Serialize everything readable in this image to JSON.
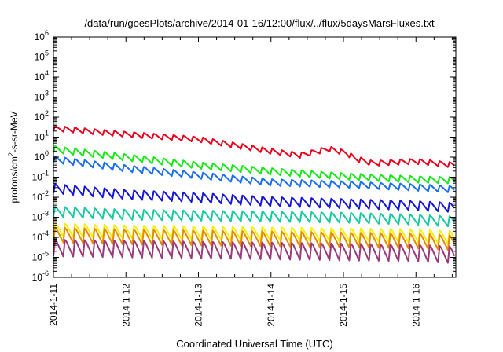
{
  "chart_data": {
    "type": "line",
    "title": "/data/run/goesPlots/archive/2014-01-16/12:00/flux/../flux/5daysMarsFluxes.txt",
    "xlabel": "Coordinated Universal Time (UTC)",
    "ylabel": {
      "main": "protons/cm",
      "sup": "2",
      "rest": "-s-sr-MeV"
    },
    "yscale": "log",
    "ylim": [
      1e-06,
      1000000.0
    ],
    "yticks": [
      {
        "base": "10",
        "exp": "-6",
        "value": -6
      },
      {
        "base": "10",
        "exp": "-5",
        "value": -5
      },
      {
        "base": "10",
        "exp": "-4",
        "value": -4
      },
      {
        "base": "10",
        "exp": "-3",
        "value": -3
      },
      {
        "base": "10",
        "exp": "-2",
        "value": -2
      },
      {
        "base": "10",
        "exp": "-1",
        "value": -1
      },
      {
        "base": "10",
        "exp": "0",
        "value": 0
      },
      {
        "base": "10",
        "exp": "1",
        "value": 1
      },
      {
        "base": "10",
        "exp": "2",
        "value": 2
      },
      {
        "base": "10",
        "exp": "3",
        "value": 3
      },
      {
        "base": "10",
        "exp": "4",
        "value": 4
      },
      {
        "base": "10",
        "exp": "5",
        "value": 5
      },
      {
        "base": "10",
        "exp": "6",
        "value": 6
      }
    ],
    "xlim": [
      0,
      5.55
    ],
    "xticks": [
      {
        "label": "2014-1-11",
        "day": 0
      },
      {
        "label": "2014-1-12",
        "day": 1
      },
      {
        "label": "2014-1-13",
        "day": 2
      },
      {
        "label": "2014-1-14",
        "day": 3
      },
      {
        "label": "2014-1-15",
        "day": 4
      },
      {
        "label": "2014-1-16",
        "day": 5
      }
    ],
    "grid": false,
    "series": [
      {
        "color": "#e8001c",
        "period": 0.136,
        "amp": 0.28,
        "trend": [
          [
            0,
            1.45
          ],
          [
            1,
            1.15
          ],
          [
            2,
            0.9
          ],
          [
            3,
            0.3
          ],
          [
            3.4,
            0.1
          ],
          [
            3.8,
            0.42
          ],
          [
            4.05,
            0.2
          ],
          [
            4.15,
            -0.05
          ],
          [
            4.4,
            -0.3
          ],
          [
            5,
            -0.2
          ],
          [
            5.55,
            -0.4
          ]
        ]
      },
      {
        "color": "#17e817",
        "period": 0.136,
        "amp": 0.35,
        "trend": [
          [
            0,
            0.4
          ],
          [
            1,
            0.0
          ],
          [
            2,
            -0.4
          ],
          [
            3,
            -0.7
          ],
          [
            4,
            -0.95
          ],
          [
            5,
            -1.1
          ],
          [
            5.55,
            -1.15
          ]
        ]
      },
      {
        "color": "#1a6ef0",
        "period": 0.136,
        "amp": 0.35,
        "trend": [
          [
            0,
            -0.1
          ],
          [
            1,
            -0.55
          ],
          [
            2,
            -0.9
          ],
          [
            3,
            -1.25
          ],
          [
            4,
            -1.35
          ],
          [
            5,
            -1.5
          ],
          [
            5.55,
            -1.6
          ]
        ]
      },
      {
        "color": "#1616d6",
        "period": 0.136,
        "amp": 0.5,
        "trend": [
          [
            0,
            -1.55
          ],
          [
            1,
            -1.85
          ],
          [
            2,
            -2.0
          ],
          [
            3,
            -2.2
          ],
          [
            4,
            -2.3
          ],
          [
            5,
            -2.4
          ],
          [
            5.55,
            -2.5
          ]
        ]
      },
      {
        "color": "#18c8a0",
        "period": 0.136,
        "amp": 0.55,
        "trend": [
          [
            0,
            -2.7
          ],
          [
            1,
            -2.85
          ],
          [
            2,
            -2.9
          ],
          [
            3,
            -2.95
          ],
          [
            4,
            -3.0
          ],
          [
            5,
            -3.1
          ],
          [
            5.55,
            -3.2
          ]
        ]
      },
      {
        "color": "#f2f200",
        "period": 0.136,
        "amp": 0.7,
        "trend": [
          [
            0,
            -3.6
          ],
          [
            1,
            -3.7
          ],
          [
            2,
            -3.75
          ],
          [
            3,
            -3.8
          ],
          [
            4,
            -3.85
          ],
          [
            5,
            -3.9
          ],
          [
            5.55,
            -4.0
          ]
        ]
      },
      {
        "color": "#e68a00",
        "period": 0.136,
        "amp": 0.8,
        "trend": [
          [
            0,
            -3.85
          ],
          [
            1,
            -3.95
          ],
          [
            2,
            -4.0
          ],
          [
            3,
            -4.05
          ],
          [
            4,
            -4.1
          ],
          [
            5,
            -4.15
          ],
          [
            5.55,
            -4.25
          ]
        ]
      },
      {
        "color": "#9a3a7a",
        "period": 0.136,
        "amp": 0.9,
        "trend": [
          [
            0,
            -4.5
          ],
          [
            1,
            -4.55
          ],
          [
            2,
            -4.6
          ],
          [
            3,
            -4.65
          ],
          [
            4,
            -4.7
          ],
          [
            5,
            -4.75
          ],
          [
            5.55,
            -4.85
          ]
        ]
      }
    ]
  }
}
